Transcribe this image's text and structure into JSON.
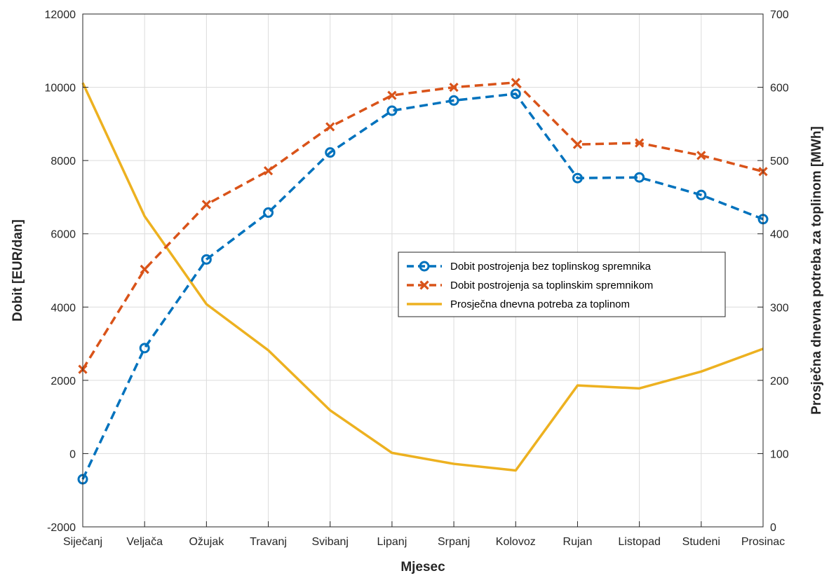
{
  "chart_data": {
    "type": "line",
    "categories": [
      "Siječanj",
      "Veljača",
      "Ožujak",
      "Travanj",
      "Svibanj",
      "Lipanj",
      "Srpanj",
      "Kolovoz",
      "Rujan",
      "Listopad",
      "Studeni",
      "Prosinac"
    ],
    "xlabel": "Mjesec",
    "ylabel_left": "Dobit [EUR/dan]",
    "ylabel_right": "Prosječna dnevna potreba za toplinom [MWh]",
    "ylim_left": [
      -2000,
      12000
    ],
    "yticks_left": [
      -2000,
      0,
      2000,
      4000,
      6000,
      8000,
      10000,
      12000
    ],
    "ylim_right": [
      0,
      700
    ],
    "yticks_right": [
      0,
      100,
      200,
      300,
      400,
      500,
      600,
      700
    ],
    "grid": true,
    "legend_position": "center-right",
    "series": [
      {
        "name": "Dobit postrojenja bez toplinskog spremnika",
        "axis": "left",
        "style": "dashed",
        "marker": "circle",
        "color": "#0072BD",
        "values": [
          -700,
          2880,
          5300,
          6580,
          8220,
          9360,
          9640,
          9820,
          7520,
          7540,
          7060,
          6400
        ]
      },
      {
        "name": "Dobit postrojenja sa toplinskim spremnikom",
        "axis": "left",
        "style": "dashed",
        "marker": "x",
        "color": "#D95319",
        "values": [
          2300,
          5030,
          6800,
          7720,
          8920,
          9780,
          10000,
          10130,
          8440,
          8480,
          8140,
          7700
        ]
      },
      {
        "name": "Prosječna dnevna potreba za toplinom",
        "axis": "right",
        "style": "solid",
        "marker": "none",
        "color": "#EDB120",
        "values": [
          606,
          424,
          304,
          241,
          159,
          101,
          86,
          77,
          193,
          189,
          212,
          243
        ]
      }
    ]
  }
}
